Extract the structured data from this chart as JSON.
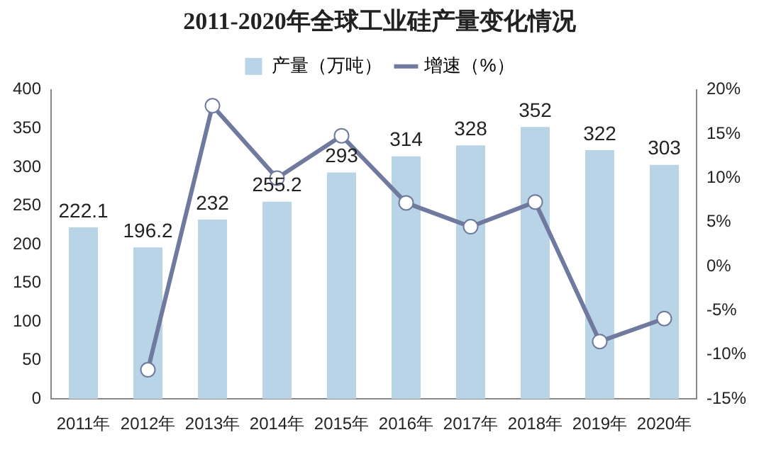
{
  "chart_data": {
    "type": "bar",
    "title": "2011-2020年全球工业硅产量变化情况",
    "categories": [
      "2011年",
      "2012年",
      "2013年",
      "2014年",
      "2015年",
      "2016年",
      "2017年",
      "2018年",
      "2019年",
      "2020年"
    ],
    "series": [
      {
        "name": "产量（万吨）",
        "color": "#b8d4e6",
        "values": [
          222.1,
          196.2,
          232,
          255.2,
          293,
          314,
          328,
          352,
          322,
          303
        ],
        "value_labels": [
          "222.1",
          "196.2",
          "232",
          "255.2",
          "293",
          "314",
          "328",
          "352",
          "322",
          "303"
        ]
      },
      {
        "name": "增速（%）",
        "type": "line",
        "axis": "y2",
        "color": "#6f7a9e",
        "values": [
          null,
          -11.7,
          18.2,
          10.0,
          14.8,
          7.2,
          4.5,
          7.3,
          -8.5,
          -5.9
        ]
      }
    ],
    "ylim": [
      0,
      400
    ],
    "yticks": [
      0,
      50,
      100,
      150,
      200,
      250,
      300,
      350,
      400
    ],
    "y2lim": [
      -15,
      20
    ],
    "y2ticks": [
      {
        "value": -15,
        "label": "-15%"
      },
      {
        "value": -10,
        "label": "-10%"
      },
      {
        "value": -5,
        "label": "-5%"
      },
      {
        "value": 0,
        "label": "0%"
      },
      {
        "value": 5,
        "label": "5%"
      },
      {
        "value": 10,
        "label": "10%"
      },
      {
        "value": 15,
        "label": "15%"
      },
      {
        "value": 20,
        "label": "20%"
      }
    ],
    "legend": "top",
    "grid": false,
    "marker": "circle",
    "line_style": "solid"
  }
}
